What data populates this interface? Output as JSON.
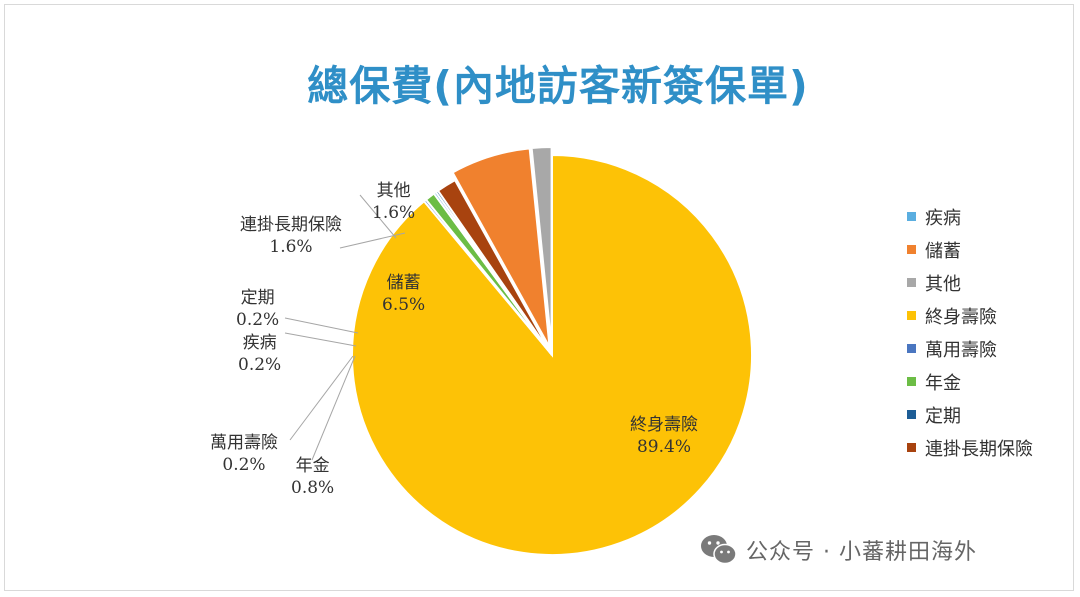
{
  "chart_data": {
    "type": "pie",
    "title": "總保費(內地訪客新簽保單)",
    "slices": [
      {
        "label": "疾病",
        "value": 0.2,
        "pct_label": "0.2%",
        "color": "#5aaee0"
      },
      {
        "label": "儲蓄",
        "value": 6.5,
        "pct_label": "6.5%",
        "color": "#f0812e"
      },
      {
        "label": "其他",
        "value": 1.6,
        "pct_label": "1.6%",
        "color": "#a8a8a8"
      },
      {
        "label": "終身壽險",
        "value": 89.4,
        "pct_label": "89.4%",
        "color": "#fdc206"
      },
      {
        "label": "萬用壽險",
        "value": 0.2,
        "pct_label": "0.2%",
        "color": "#4a76c0"
      },
      {
        "label": "年金",
        "value": 0.8,
        "pct_label": "0.8%",
        "color": "#6cbd45"
      },
      {
        "label": "定期",
        "value": 0.2,
        "pct_label": "0.2%",
        "color": "#1d5d96"
      },
      {
        "label": "連掛長期保險",
        "value": 1.6,
        "pct_label": "1.6%",
        "color": "#a8430f"
      }
    ],
    "legend_position": "right",
    "legend": [
      "疾病",
      "儲蓄",
      "其他",
      "終身壽險",
      "萬用壽險",
      "年金",
      "定期",
      "連掛長期保險"
    ]
  },
  "watermark": {
    "text": "公众号 · 小蕃耕田海外",
    "icon": "wechat-icon"
  }
}
